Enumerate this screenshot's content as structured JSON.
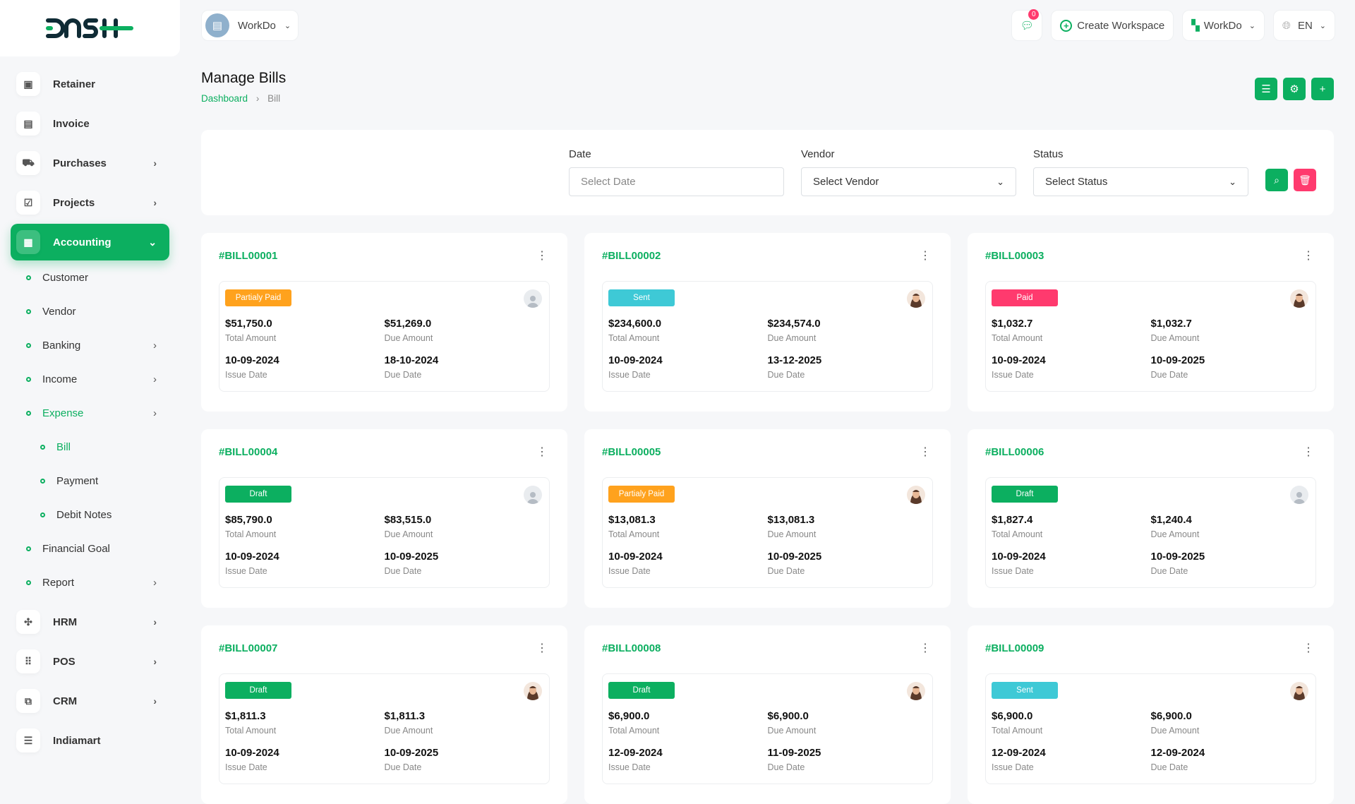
{
  "brand": {
    "logo_text": "DASH"
  },
  "header": {
    "workspace": "WorkDo",
    "notif_count": "0",
    "create_workspace": "Create Workspace",
    "workspace_menu": "WorkDo",
    "language": "EN"
  },
  "sidebar": {
    "items": [
      {
        "label": "Retainer",
        "icon": "save-icon"
      },
      {
        "label": "Invoice",
        "icon": "file-icon"
      },
      {
        "label": "Purchases",
        "icon": "cart-icon",
        "chev": true
      },
      {
        "label": "Projects",
        "icon": "checkbox-icon",
        "chev": true
      },
      {
        "label": "Accounting",
        "icon": "grid-icon",
        "active": true
      }
    ],
    "accounting_sub": [
      "Customer",
      "Vendor",
      "Banking",
      "Income",
      "Expense",
      "Bill",
      "Payment",
      "Debit Notes",
      "Financial Goal",
      "Report"
    ],
    "bottom_items": [
      "HRM",
      "POS",
      "CRM",
      "Indiamart"
    ]
  },
  "page": {
    "title": "Manage Bills",
    "breadcrumb": [
      "Dashboard",
      "Bill"
    ]
  },
  "filters": {
    "date_label": "Date",
    "date_placeholder": "Select Date",
    "vendor_label": "Vendor",
    "vendor_value": "Select Vendor",
    "status_label": "Status",
    "status_value": "Select Status"
  },
  "labels": {
    "total": "Total Amount",
    "due": "Due Amount",
    "issue": "Issue Date",
    "due_date": "Due Date"
  },
  "colors": {
    "accent": "#0caf60",
    "partial": "#ffa21d",
    "sent": "#3ec9d6",
    "paid": "#ff3a6e",
    "draft": "#0caf60"
  },
  "bills": [
    {
      "id": "#BILL00001",
      "status": "Partialy Paid",
      "type": "partial",
      "total": "$51,750.0",
      "due": "$51,269.0",
      "issue_date": "10-09-2024",
      "due_date": "18-10-2024",
      "avatar": "default"
    },
    {
      "id": "#BILL00002",
      "status": "Sent",
      "type": "sent",
      "total": "$234,600.0",
      "due": "$234,574.0",
      "issue_date": "10-09-2024",
      "due_date": "13-12-2025",
      "avatar": "person"
    },
    {
      "id": "#BILL00003",
      "status": "Paid",
      "type": "paid",
      "total": "$1,032.7",
      "due": "$1,032.7",
      "issue_date": "10-09-2024",
      "due_date": "10-09-2025",
      "avatar": "person"
    },
    {
      "id": "#BILL00004",
      "status": "Draft",
      "type": "draft",
      "total": "$85,790.0",
      "due": "$83,515.0",
      "issue_date": "10-09-2024",
      "due_date": "10-09-2025",
      "avatar": "default"
    },
    {
      "id": "#BILL00005",
      "status": "Partialy Paid",
      "type": "partial",
      "total": "$13,081.3",
      "due": "$13,081.3",
      "issue_date": "10-09-2024",
      "due_date": "10-09-2025",
      "avatar": "person"
    },
    {
      "id": "#BILL00006",
      "status": "Draft",
      "type": "draft",
      "total": "$1,827.4",
      "due": "$1,240.4",
      "issue_date": "10-09-2024",
      "due_date": "10-09-2025",
      "avatar": "default"
    },
    {
      "id": "#BILL00007",
      "status": "Draft",
      "type": "draft",
      "total": "$1,811.3",
      "due": "$1,811.3",
      "issue_date": "10-09-2024",
      "due_date": "10-09-2025",
      "avatar": "person"
    },
    {
      "id": "#BILL00008",
      "status": "Draft",
      "type": "draft",
      "total": "$6,900.0",
      "due": "$6,900.0",
      "issue_date": "12-09-2024",
      "due_date": "11-09-2025",
      "avatar": "person"
    },
    {
      "id": "#BILL00009",
      "status": "Sent",
      "type": "sent",
      "total": "$6,900.0",
      "due": "$6,900.0",
      "issue_date": "12-09-2024",
      "due_date": "12-09-2024",
      "avatar": "person"
    }
  ]
}
